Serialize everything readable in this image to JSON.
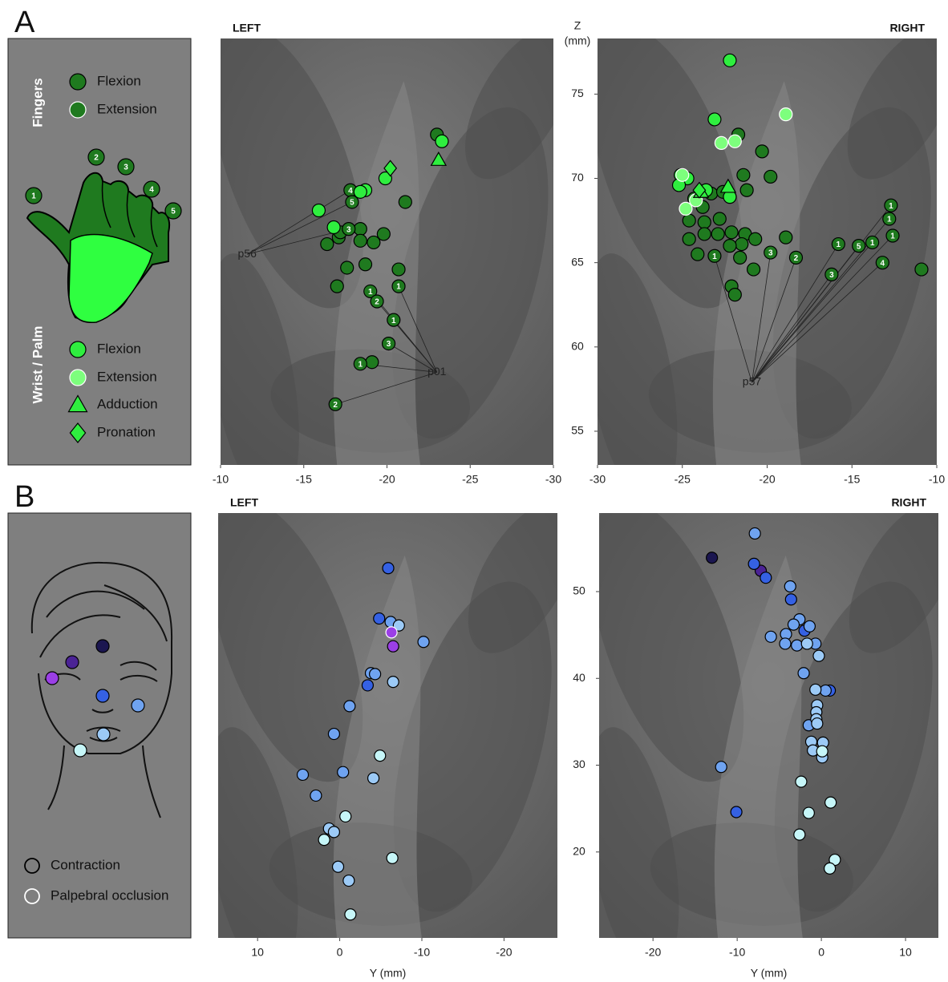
{
  "panel_labels": [
    "A",
    "B"
  ],
  "legend_a": {
    "groups": [
      {
        "title": "Fingers",
        "items": [
          {
            "label": "Flexion",
            "color": "#1f7a1f",
            "edge": "#000000",
            "marker": "circle"
          },
          {
            "label": "Extension",
            "color": "#1f7a1f",
            "edge": "#ffffff",
            "marker": "circle"
          }
        ]
      },
      {
        "title": "Wrist / Palm",
        "items": [
          {
            "label": "Flexion",
            "color": "#2fee3f",
            "edge": "#000000",
            "marker": "circle"
          },
          {
            "label": "Extension",
            "color": "#7dff7d",
            "edge": "#ffffff",
            "marker": "circle"
          },
          {
            "label": "Adduction",
            "color": "#2fee3f",
            "edge": "#000000",
            "marker": "triangle"
          },
          {
            "label": "Pronation",
            "color": "#2fee3f",
            "edge": "#000000",
            "marker": "diamond"
          }
        ]
      }
    ],
    "digits": [
      "1",
      "2",
      "3",
      "4",
      "5"
    ]
  },
  "legend_b": {
    "items": [
      {
        "label": "Contraction",
        "edge": "#000000"
      },
      {
        "label": "Palpebral occlusion",
        "edge": "#ffffff"
      }
    ],
    "face_colors": [
      "#1b1650",
      "#4b2395",
      "#9b3fe6",
      "#3561e3",
      "#6fa3f0",
      "#9ccaf6",
      "#c6f6f8"
    ]
  },
  "chart_data": [
    {
      "type": "scatter",
      "title": "LEFT",
      "xlim": [
        -10,
        -30
      ],
      "ylim": [
        53,
        78.3
      ],
      "xticks": [
        -10,
        -15,
        -20,
        -25,
        -30
      ],
      "annotations": [
        {
          "text": "p56",
          "x": -11.6,
          "y": 65.5
        },
        {
          "text": "p01",
          "x": -23.0,
          "y": 58.5
        }
      ],
      "series": [
        {
          "color": "#1f7a1f",
          "edge": "#000000",
          "marker": "circle",
          "x": [
            -23.0,
            -21.1,
            -17.1,
            -18.4,
            -17.2,
            -16.4,
            -18.4,
            -19.8,
            -19.2,
            -17.6,
            -18.7,
            -20.7,
            -17.0,
            -19.1,
            -19.0,
            -20.7,
            -19.4,
            -20.4,
            -20.1,
            -18.4,
            -16.9,
            -17.8,
            -17.9,
            -17.7
          ],
          "values": [
            72.6,
            68.6,
            66.5,
            67.0,
            66.8,
            66.1,
            66.3,
            66.7,
            66.2,
            64.7,
            64.9,
            64.6,
            63.6,
            59.1,
            63.3,
            63.6,
            62.7,
            61.6,
            60.2,
            59.0,
            56.6,
            69.3,
            68.6,
            67.0
          ],
          "labels": [
            null,
            null,
            null,
            null,
            null,
            null,
            null,
            null,
            null,
            null,
            null,
            null,
            null,
            null,
            "1",
            "1",
            "2",
            "1",
            "3",
            "1",
            "2",
            "4",
            "5",
            "3"
          ]
        },
        {
          "color": "#2fee3f",
          "edge": "#000000",
          "marker": "circle",
          "x": [
            -23.3,
            -19.9,
            -18.7,
            -18.4,
            -16.8,
            -15.9
          ],
          "values": [
            72.2,
            70.0,
            69.3,
            69.2,
            67.1,
            68.1
          ]
        },
        {
          "color": "#2fee3f",
          "edge": "#000000",
          "marker": "triangle",
          "x": [
            -23.1
          ],
          "values": [
            71.1
          ]
        },
        {
          "color": "#2fee3f",
          "edge": "#000000",
          "marker": "diamond",
          "x": [
            -20.2
          ],
          "values": [
            70.6
          ]
        }
      ]
    },
    {
      "type": "scatter",
      "title": "RIGHT",
      "xlim": [
        -30,
        -10
      ],
      "ylim": [
        53,
        78.3
      ],
      "xticks": [
        -30,
        -25,
        -20,
        -15,
        -10
      ],
      "yticks": [
        55,
        60,
        65,
        70,
        75
      ],
      "ylabel": [
        "Z",
        "(mm)"
      ],
      "annotations": [
        {
          "text": "p57",
          "x": -20.9,
          "y": 57.9
        }
      ],
      "series": [
        {
          "color": "#1f7a1f",
          "edge": "#000000",
          "marker": "circle",
          "x": [
            -23.3,
            -24.3,
            -22.6,
            -21.4,
            -21.2,
            -20.3,
            -19.8,
            -22.8,
            -23.8,
            -23.7,
            -24.6,
            -24.6,
            -22.9,
            -23.7,
            -22.1,
            -21.3,
            -20.7,
            -21.5,
            -22.2,
            -24.1,
            -21.6,
            -20.8,
            -18.9,
            -10.9,
            -22.1,
            -21.9,
            -21.7,
            -23.1,
            -19.8,
            -18.3,
            -16.2,
            -15.8,
            -14.6,
            -13.8,
            -13.2,
            -12.7,
            -12.8,
            -12.6
          ],
          "values": [
            69.1,
            68.8,
            69.2,
            70.2,
            69.3,
            71.6,
            70.1,
            67.6,
            68.3,
            67.4,
            67.5,
            66.4,
            66.7,
            66.7,
            66.8,
            66.7,
            66.4,
            66.1,
            66.0,
            65.5,
            65.3,
            64.6,
            66.5,
            64.6,
            63.6,
            63.1,
            72.6,
            65.4,
            65.6,
            65.3,
            64.3,
            66.1,
            66.0,
            66.2,
            65.0,
            68.4,
            67.6,
            66.6
          ],
          "labels": [
            null,
            null,
            null,
            null,
            null,
            null,
            null,
            null,
            null,
            null,
            null,
            null,
            null,
            null,
            null,
            null,
            null,
            null,
            null,
            null,
            null,
            null,
            null,
            null,
            null,
            null,
            null,
            "1",
            "3",
            "2",
            "3",
            "1",
            "5",
            "1",
            "4",
            "1",
            "1",
            "1"
          ]
        },
        {
          "color": "#2fee3f",
          "edge": "#000000",
          "marker": "circle",
          "x": [
            -22.2,
            -23.1,
            -24.7,
            -25.1,
            -25.2,
            -23.6,
            -22.2
          ],
          "values": [
            77.0,
            73.5,
            70.0,
            70.2,
            69.6,
            69.3,
            68.9
          ]
        },
        {
          "color": "#7dff7d",
          "edge": "#ffffff",
          "marker": "circle",
          "x": [
            -18.9,
            -22.7,
            -21.9,
            -25.0,
            -24.8,
            -24.2
          ],
          "values": [
            73.8,
            72.1,
            72.2,
            70.2,
            68.2,
            68.7
          ]
        },
        {
          "color": "#2fee3f",
          "edge": "#000000",
          "marker": "triangle",
          "x": [
            -22.3,
            -23.9
          ],
          "values": [
            69.5,
            69.2
          ]
        },
        {
          "color": "#2fee3f",
          "edge": "#000000",
          "marker": "diamond",
          "x": [
            -24.0
          ],
          "values": [
            69.3
          ]
        }
      ]
    },
    {
      "type": "scatter",
      "title": "LEFT",
      "xlim": [
        14.8,
        -26.5
      ],
      "ylim": [
        10.1,
        59.05
      ],
      "xticks": [
        10,
        0,
        -10,
        -20
      ],
      "xlabel": "Y (mm)",
      "series": [
        {
          "color": "#3561e3",
          "edge": "#000000",
          "marker": "circle",
          "x": [
            -5.9,
            -4.8,
            -3.4
          ],
          "values": [
            52.7,
            46.9,
            39.2
          ]
        },
        {
          "color": "#6fa3f0",
          "edge": "#000000",
          "marker": "circle",
          "x": [
            -6.2,
            -10.2,
            -3.8,
            -4.3,
            -1.2,
            0.7,
            4.5,
            -0.4,
            2.9
          ],
          "values": [
            46.5,
            44.2,
            40.6,
            40.5,
            36.8,
            33.6,
            28.9,
            29.2,
            26.5
          ]
        },
        {
          "color": "#9ccaf6",
          "edge": "#000000",
          "marker": "circle",
          "x": [
            -7.2,
            -6.5,
            -4.1,
            1.3,
            0.7,
            0.2,
            -1.1
          ],
          "values": [
            46.1,
            39.6,
            28.5,
            22.7,
            22.3,
            18.3,
            16.7
          ]
        },
        {
          "color": "#c6f6f8",
          "edge": "#000000",
          "marker": "circle",
          "x": [
            -4.9,
            -0.7,
            1.9,
            -6.4,
            -1.3
          ],
          "values": [
            31.1,
            24.1,
            21.4,
            19.3,
            12.8
          ]
        },
        {
          "color": "#9b3fe6",
          "edge": "#ffffff",
          "marker": "circle",
          "x": [
            -6.3
          ],
          "values": [
            45.3
          ]
        },
        {
          "color": "#9b3fe6",
          "edge": "#000000",
          "marker": "circle",
          "x": [
            -6.5
          ],
          "values": [
            43.7
          ]
        }
      ]
    },
    {
      "type": "scatter",
      "title": "RIGHT",
      "xlim": [
        -26.4,
        13.9
      ],
      "ylim": [
        10.1,
        59.05
      ],
      "xticks": [
        -20,
        -10,
        0,
        10
      ],
      "yticks": [
        20,
        30,
        40,
        50
      ],
      "xlabel": "Y (mm)",
      "series": [
        {
          "color": "#1b1650",
          "edge": "#000000",
          "marker": "circle",
          "x": [
            -13.0
          ],
          "values": [
            53.9
          ]
        },
        {
          "color": "#4b2395",
          "edge": "#000000",
          "marker": "circle",
          "x": [
            -7.2
          ],
          "values": [
            52.4
          ]
        },
        {
          "color": "#3561e3",
          "edge": "#000000",
          "marker": "circle",
          "x": [
            -8.0,
            -6.6,
            -3.6,
            -2.0,
            1.0,
            -10.1
          ],
          "values": [
            53.2,
            51.6,
            49.1,
            45.5,
            38.6,
            24.6
          ]
        },
        {
          "color": "#6fa3f0",
          "edge": "#000000",
          "marker": "circle",
          "x": [
            -7.9,
            -3.7,
            -2.6,
            -3.3,
            -1.4,
            -6.0,
            -4.2,
            -4.3,
            -2.9,
            -0.7,
            -2.1,
            0.5,
            -1.5,
            -11.9
          ],
          "values": [
            56.7,
            50.6,
            46.8,
            46.2,
            46.0,
            44.8,
            45.1,
            44.0,
            43.8,
            44.0,
            40.6,
            38.6,
            34.6,
            29.8
          ]
        },
        {
          "color": "#9ccaf6",
          "edge": "#000000",
          "marker": "circle",
          "x": [
            -1.7,
            -0.3,
            -0.7,
            -0.5,
            -0.6,
            -0.6,
            -0.5,
            -1.2,
            0.2,
            -1.0,
            0.1
          ],
          "values": [
            44.0,
            42.6,
            38.7,
            36.9,
            36.1,
            35.3,
            34.8,
            32.7,
            32.6,
            31.7,
            30.9
          ]
        },
        {
          "color": "#c6f6f8",
          "edge": "#000000",
          "marker": "circle",
          "x": [
            0.1,
            -2.4,
            1.1,
            -1.5,
            -2.6,
            1.6,
            1.0
          ],
          "values": [
            31.6,
            28.1,
            25.7,
            24.5,
            22.0,
            19.1,
            18.1
          ]
        }
      ]
    }
  ]
}
